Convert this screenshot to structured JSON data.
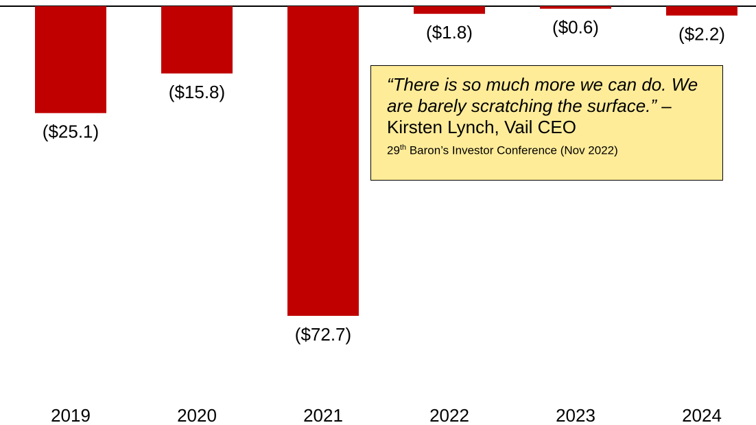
{
  "chart_data": {
    "type": "bar",
    "categories": [
      "2019",
      "2020",
      "2021",
      "2022",
      "2023",
      "2024"
    ],
    "values": [
      -25.1,
      -15.8,
      -72.7,
      -1.8,
      -0.6,
      -2.2
    ],
    "value_labels": [
      "($25.1)",
      "($15.8)",
      "($72.7)",
      "($1.8)",
      "($0.6)",
      "($2.2)"
    ],
    "title": "",
    "xlabel": "",
    "ylabel": "",
    "ylim": [
      -72.7,
      0
    ],
    "bar_color": "#c00000",
    "grid": false
  },
  "quote": {
    "text": "“There is so much more we can do. We are barely scratching the surface.”",
    "attribution": " – Kirsten Lynch, Vail CEO",
    "source_ordinal": "29",
    "source_sup": "th",
    "source_rest": " Baron’s Investor Conference (Nov 2022)"
  },
  "colors": {
    "box_fill": "#ffec99",
    "box_border": "#000000"
  }
}
